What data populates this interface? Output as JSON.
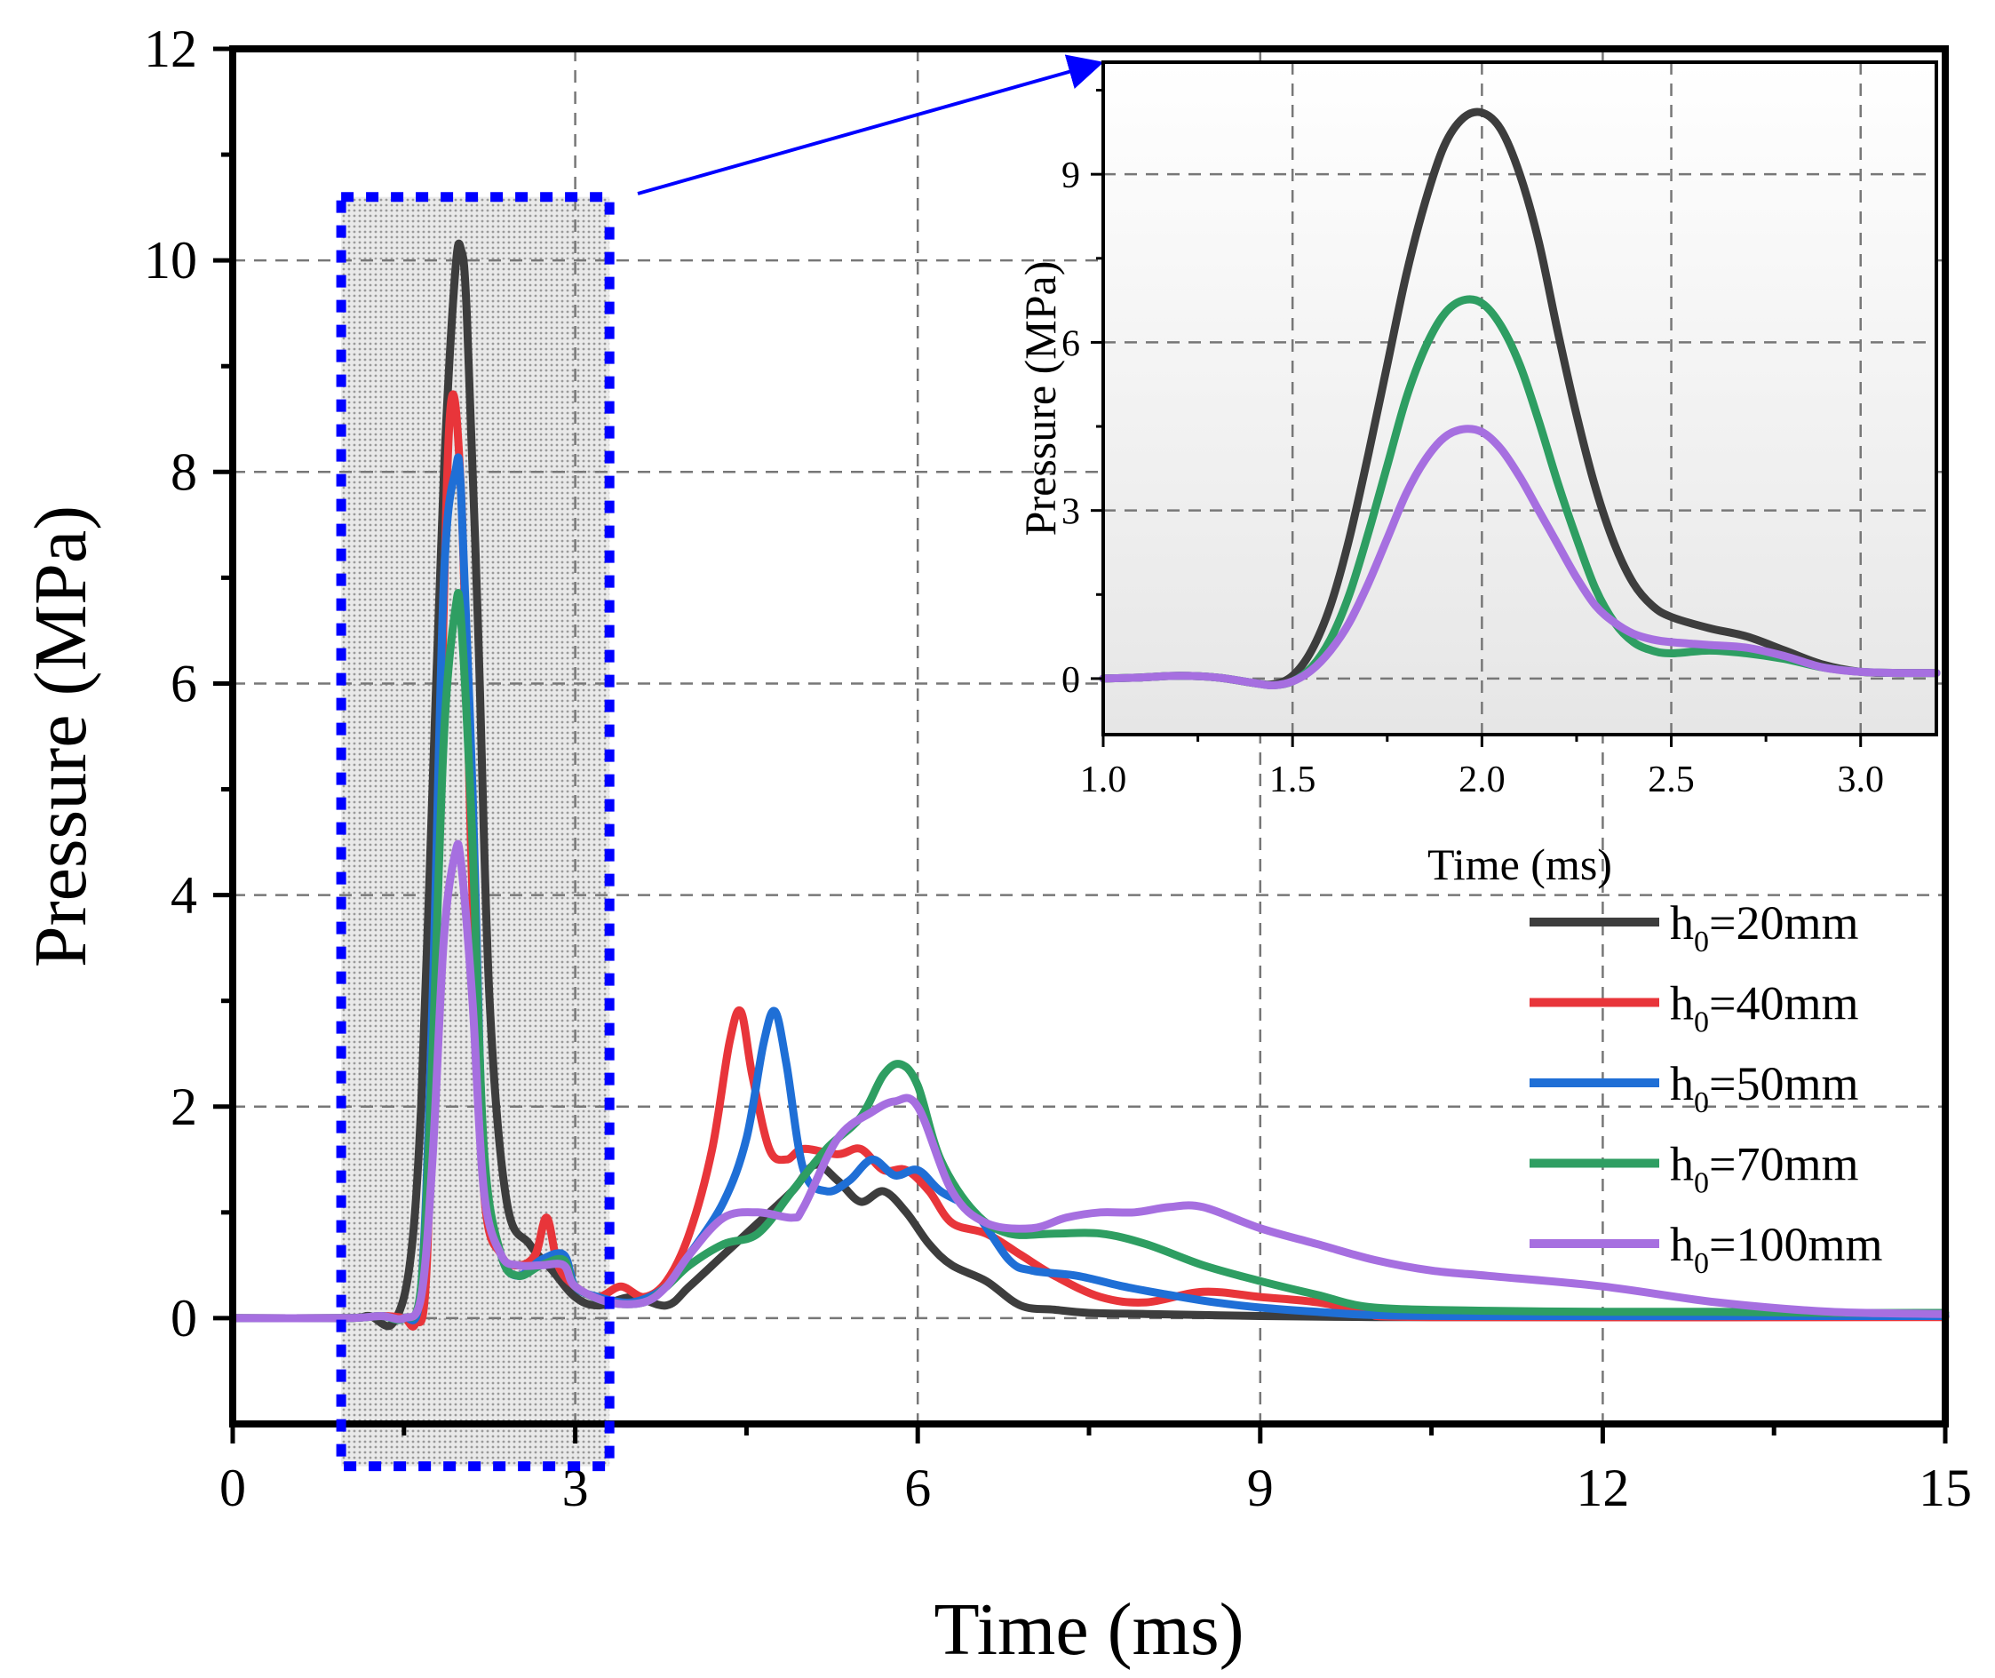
{
  "chart_data": [
    {
      "type": "line",
      "id": "main",
      "title": "",
      "xlabel": "Time (ms)",
      "ylabel": "Pressure (MPa)",
      "xlim": [
        0,
        15
      ],
      "ylim": [
        -1,
        12
      ],
      "xticks": [
        0,
        3,
        6,
        9,
        12,
        15
      ],
      "yticks": [
        0,
        2,
        4,
        6,
        8,
        10,
        12
      ],
      "grid": true,
      "legend_position": "middle-right",
      "highlight_region": {
        "x": [
          0.95,
          3.3
        ],
        "y": [
          -1.4,
          10.6
        ],
        "color": "#0000ff"
      },
      "series": [
        {
          "name": "h0=20mm",
          "color": "#3d3d3d",
          "x": [
            0,
            1.0,
            1.2,
            1.4,
            1.55,
            1.65,
            1.75,
            1.85,
            1.95,
            2.0,
            2.05,
            2.15,
            2.25,
            2.4,
            2.6,
            2.8,
            3.0,
            3.2,
            3.5,
            3.8,
            4.0,
            4.3,
            4.6,
            4.9,
            5.1,
            5.3,
            5.5,
            5.7,
            5.9,
            6.1,
            6.3,
            6.6,
            6.9,
            7.2,
            7.5,
            8.0,
            8.5,
            9.0,
            10,
            11,
            12,
            13,
            15
          ],
          "y": [
            0,
            0,
            0.02,
            -0.05,
            0.5,
            2.0,
            5.0,
            8.0,
            9.9,
            10.1,
            9.5,
            6.5,
            3.0,
            1.1,
            0.7,
            0.45,
            0.2,
            0.12,
            0.2,
            0.12,
            0.3,
            0.6,
            0.9,
            1.2,
            1.45,
            1.3,
            1.1,
            1.2,
            1.0,
            0.7,
            0.5,
            0.35,
            0.12,
            0.08,
            0.05,
            0.04,
            0.03,
            0.02,
            0.01,
            0.01,
            0.01,
            0.01,
            0.02
          ]
        },
        {
          "name": "h0=40mm",
          "color": "#e8353a",
          "x": [
            0,
            1.0,
            1.3,
            1.5,
            1.6,
            1.7,
            1.8,
            1.9,
            2.0,
            2.1,
            2.2,
            2.35,
            2.5,
            2.65,
            2.75,
            2.85,
            3.0,
            3.2,
            3.4,
            3.6,
            3.8,
            4.0,
            4.2,
            4.35,
            4.45,
            4.55,
            4.7,
            4.85,
            5.0,
            5.3,
            5.5,
            5.7,
            5.9,
            6.1,
            6.3,
            6.6,
            6.9,
            7.2,
            7.6,
            8.0,
            8.5,
            9.0,
            9.5,
            10,
            10.5,
            15
          ],
          "y": [
            0,
            0,
            0.02,
            0,
            -0.05,
            0.5,
            4.5,
            8.5,
            7.8,
            4.0,
            1.2,
            0.6,
            0.5,
            0.6,
            0.95,
            0.5,
            0.3,
            0.2,
            0.3,
            0.2,
            0.35,
            0.8,
            1.6,
            2.6,
            2.9,
            2.3,
            1.6,
            1.5,
            1.6,
            1.55,
            1.6,
            1.4,
            1.4,
            1.2,
            0.9,
            0.8,
            0.6,
            0.4,
            0.2,
            0.15,
            0.25,
            0.2,
            0.15,
            0.05,
            0.01,
            0.01
          ]
        },
        {
          "name": "h0=50mm",
          "color": "#1f6fd6",
          "x": [
            0,
            1.0,
            1.3,
            1.5,
            1.65,
            1.75,
            1.85,
            1.95,
            2.0,
            2.1,
            2.2,
            2.35,
            2.5,
            2.7,
            2.9,
            3.0,
            3.2,
            3.5,
            3.8,
            4.0,
            4.3,
            4.5,
            4.65,
            4.75,
            4.85,
            5.0,
            5.2,
            5.4,
            5.6,
            5.8,
            6.0,
            6.2,
            6.5,
            6.8,
            7.0,
            7.4,
            7.8,
            8.2,
            8.6,
            9.0,
            9.5,
            10,
            11,
            15
          ],
          "y": [
            0,
            0,
            0.02,
            0,
            0.3,
            3.0,
            7.0,
            8.0,
            7.8,
            5.0,
            1.5,
            0.6,
            0.4,
            0.55,
            0.6,
            0.3,
            0.2,
            0.15,
            0.3,
            0.6,
            1.1,
            1.7,
            2.6,
            2.9,
            2.4,
            1.4,
            1.2,
            1.3,
            1.5,
            1.35,
            1.4,
            1.2,
            1.0,
            0.55,
            0.45,
            0.4,
            0.3,
            0.22,
            0.15,
            0.1,
            0.06,
            0.03,
            0.02,
            0.02
          ]
        },
        {
          "name": "h0=70mm",
          "color": "#2e9e62",
          "x": [
            0,
            1.0,
            1.3,
            1.5,
            1.65,
            1.75,
            1.85,
            1.95,
            2.0,
            2.1,
            2.2,
            2.35,
            2.5,
            2.7,
            2.9,
            3.0,
            3.3,
            3.6,
            3.8,
            4.0,
            4.3,
            4.6,
            4.9,
            5.2,
            5.5,
            5.7,
            5.85,
            6.0,
            6.2,
            6.5,
            6.8,
            7.2,
            7.6,
            8.0,
            8.5,
            9.0,
            9.5,
            10,
            11,
            12,
            13,
            14,
            15
          ],
          "y": [
            0,
            0,
            0.02,
            0,
            0.3,
            2.5,
            5.5,
            6.7,
            6.6,
            4.5,
            1.6,
            0.6,
            0.4,
            0.5,
            0.55,
            0.3,
            0.15,
            0.15,
            0.3,
            0.5,
            0.7,
            0.8,
            1.2,
            1.6,
            1.9,
            2.3,
            2.4,
            2.2,
            1.5,
            1.0,
            0.8,
            0.8,
            0.8,
            0.7,
            0.5,
            0.35,
            0.22,
            0.1,
            0.07,
            0.06,
            0.06,
            0.05,
            0.05
          ]
        },
        {
          "name": "h0=100mm",
          "color": "#a66fe0",
          "x": [
            0,
            1.0,
            1.3,
            1.5,
            1.65,
            1.75,
            1.85,
            1.95,
            2.0,
            2.1,
            2.2,
            2.35,
            2.5,
            2.7,
            2.9,
            3.0,
            3.3,
            3.6,
            3.8,
            4.0,
            4.3,
            4.6,
            4.9,
            5.0,
            5.3,
            5.6,
            5.8,
            6.0,
            6.3,
            6.6,
            7.0,
            7.3,
            7.6,
            7.9,
            8.2,
            8.5,
            9.0,
            9.5,
            10,
            10.5,
            11,
            12,
            13,
            14,
            15
          ],
          "y": [
            0,
            0,
            0.02,
            0,
            0.2,
            1.5,
            3.6,
            4.4,
            4.3,
            3.0,
            1.2,
            0.6,
            0.5,
            0.5,
            0.5,
            0.3,
            0.15,
            0.15,
            0.3,
            0.6,
            0.95,
            1.0,
            0.95,
            1.05,
            1.7,
            1.95,
            2.05,
            2.0,
            1.2,
            0.9,
            0.85,
            0.95,
            1.0,
            1.0,
            1.05,
            1.05,
            0.85,
            0.7,
            0.55,
            0.45,
            0.4,
            0.3,
            0.15,
            0.06,
            0.04
          ]
        }
      ]
    },
    {
      "type": "line",
      "id": "inset",
      "title": "",
      "xlabel": "Time (ms)",
      "ylabel": "Pressure (MPa)",
      "xlim": [
        1.0,
        3.2
      ],
      "ylim": [
        -1,
        11
      ],
      "xticks": [
        1.0,
        1.5,
        2.0,
        2.5,
        3.0
      ],
      "xtick_labels": [
        "1.0",
        "1.5",
        "2.0",
        "2.5",
        "3.0"
      ],
      "yticks": [
        0,
        3,
        6,
        9
      ],
      "grid": true,
      "series": [
        {
          "name": "h0=20mm",
          "color": "#3d3d3d",
          "x": [
            1.0,
            1.1,
            1.2,
            1.3,
            1.4,
            1.45,
            1.5,
            1.55,
            1.6,
            1.65,
            1.7,
            1.75,
            1.8,
            1.85,
            1.9,
            1.95,
            2.0,
            2.05,
            2.1,
            2.15,
            2.2,
            2.25,
            2.3,
            2.35,
            2.4,
            2.45,
            2.5,
            2.6,
            2.7,
            2.8,
            2.9,
            3.0,
            3.1,
            3.2
          ],
          "y": [
            0,
            0.02,
            0.05,
            0.02,
            -0.08,
            -0.1,
            0.05,
            0.5,
            1.3,
            2.5,
            4.0,
            5.6,
            7.2,
            8.5,
            9.5,
            10.0,
            10.1,
            9.8,
            9.0,
            7.8,
            6.2,
            4.7,
            3.4,
            2.4,
            1.7,
            1.3,
            1.1,
            0.9,
            0.75,
            0.5,
            0.25,
            0.12,
            0.1,
            0.1
          ]
        },
        {
          "name": "h0=70mm",
          "color": "#2e9e62",
          "x": [
            1.0,
            1.1,
            1.2,
            1.3,
            1.4,
            1.45,
            1.5,
            1.55,
            1.6,
            1.65,
            1.7,
            1.75,
            1.8,
            1.85,
            1.9,
            1.95,
            2.0,
            2.05,
            2.1,
            2.15,
            2.2,
            2.25,
            2.3,
            2.35,
            2.4,
            2.45,
            2.5,
            2.6,
            2.7,
            2.8,
            2.9,
            3.0,
            3.1,
            3.2
          ],
          "y": [
            0,
            0.02,
            0.05,
            0.02,
            -0.08,
            -0.12,
            -0.05,
            0.2,
            0.7,
            1.5,
            2.6,
            3.8,
            5.0,
            5.9,
            6.5,
            6.75,
            6.7,
            6.3,
            5.6,
            4.6,
            3.5,
            2.5,
            1.6,
            1.0,
            0.65,
            0.5,
            0.45,
            0.5,
            0.45,
            0.35,
            0.2,
            0.12,
            0.1,
            0.1
          ]
        },
        {
          "name": "h0=100mm",
          "color": "#a66fe0",
          "x": [
            1.0,
            1.1,
            1.2,
            1.3,
            1.4,
            1.45,
            1.5,
            1.55,
            1.6,
            1.65,
            1.7,
            1.75,
            1.8,
            1.85,
            1.9,
            1.95,
            2.0,
            2.05,
            2.1,
            2.15,
            2.2,
            2.25,
            2.3,
            2.35,
            2.4,
            2.45,
            2.5,
            2.6,
            2.7,
            2.8,
            2.9,
            3.0,
            3.1,
            3.2
          ],
          "y": [
            0,
            0.02,
            0.05,
            0.02,
            -0.08,
            -0.12,
            -0.05,
            0.15,
            0.5,
            1.0,
            1.7,
            2.5,
            3.3,
            3.9,
            4.3,
            4.45,
            4.4,
            4.1,
            3.6,
            3.0,
            2.4,
            1.8,
            1.3,
            1.0,
            0.8,
            0.7,
            0.65,
            0.6,
            0.55,
            0.4,
            0.2,
            0.12,
            0.1,
            0.1
          ]
        }
      ]
    }
  ],
  "legend": {
    "items": [
      {
        "prefix": "h",
        "sub": "0",
        "suffix": "=20mm",
        "color": "#3d3d3d"
      },
      {
        "prefix": "h",
        "sub": "0",
        "suffix": "=40mm",
        "color": "#e8353a"
      },
      {
        "prefix": "h",
        "sub": "0",
        "suffix": "=50mm",
        "color": "#1f6fd6"
      },
      {
        "prefix": "h",
        "sub": "0",
        "suffix": "=70mm",
        "color": "#2e9e62"
      },
      {
        "prefix": "h",
        "sub": "0",
        "suffix": "=100mm",
        "color": "#a66fe0"
      }
    ]
  },
  "colors": {
    "highlight": "#0000ff",
    "arrow": "#0000ff",
    "grid": "#777777"
  }
}
